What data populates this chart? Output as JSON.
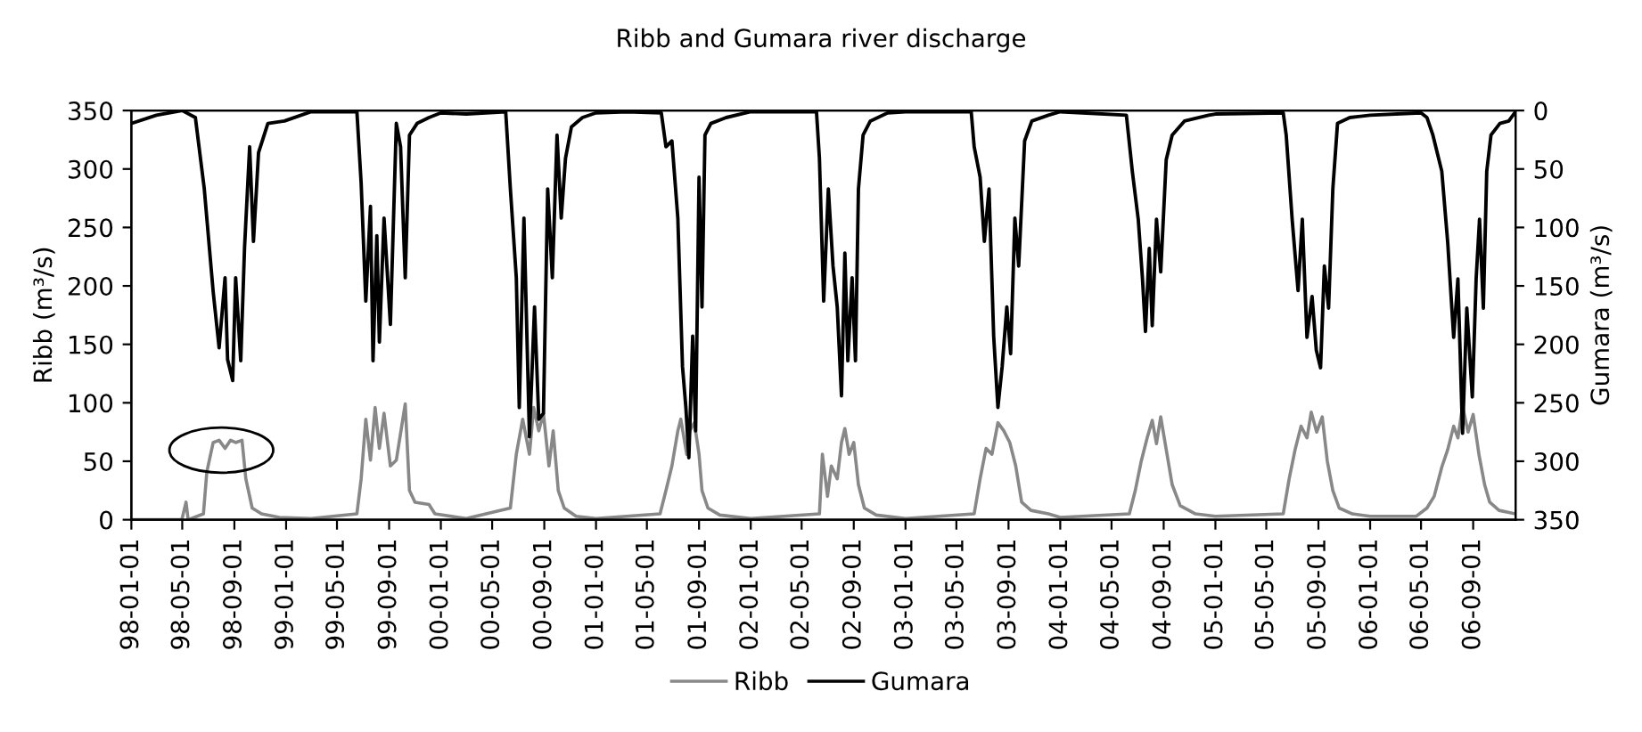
{
  "chart_data": {
    "type": "line",
    "title": "Ribb and Gumara river discharge",
    "ylabel": "Ribb (m³/s)",
    "y2label": "Gumara (m³/s)",
    "xlim": [
      "1998-01-01",
      "2006-12-10"
    ],
    "xticks": [
      {
        "value": "1998-01-01",
        "label": "98-01-01"
      },
      {
        "value": "1998-05-01",
        "label": "98-05-01"
      },
      {
        "value": "1998-09-01",
        "label": "98-09-01"
      },
      {
        "value": "1999-01-01",
        "label": "99-01-01"
      },
      {
        "value": "1999-05-01",
        "label": "99-05-01"
      },
      {
        "value": "1999-09-01",
        "label": "99-09-01"
      },
      {
        "value": "2000-01-01",
        "label": "00-01-01"
      },
      {
        "value": "2000-05-01",
        "label": "00-05-01"
      },
      {
        "value": "2000-09-01",
        "label": "00-09-01"
      },
      {
        "value": "2001-01-01",
        "label": "01-01-01"
      },
      {
        "value": "2001-05-01",
        "label": "01-05-01"
      },
      {
        "value": "2001-09-01",
        "label": "01-09-01"
      },
      {
        "value": "2002-01-01",
        "label": "02-01-01"
      },
      {
        "value": "2002-05-01",
        "label": "02-05-01"
      },
      {
        "value": "2002-09-01",
        "label": "02-09-01"
      },
      {
        "value": "2003-01-01",
        "label": "03-01-01"
      },
      {
        "value": "2003-05-01",
        "label": "03-05-01"
      },
      {
        "value": "2003-09-01",
        "label": "03-09-01"
      },
      {
        "value": "2004-01-01",
        "label": "04-01-01"
      },
      {
        "value": "2004-05-01",
        "label": "04-05-01"
      },
      {
        "value": "2004-09-01",
        "label": "04-09-01"
      },
      {
        "value": "2005-01-01",
        "label": "05-01-01"
      },
      {
        "value": "2005-05-01",
        "label": "05-05-01"
      },
      {
        "value": "2005-09-01",
        "label": "05-09-01"
      },
      {
        "value": "2006-01-01",
        "label": "06-01-01"
      },
      {
        "value": "2006-05-01",
        "label": "06-05-01"
      },
      {
        "value": "2006-09-01",
        "label": "06-09-01"
      }
    ],
    "ylim": [
      0,
      350
    ],
    "yticks": [
      0,
      50,
      100,
      150,
      200,
      250,
      300,
      350
    ],
    "y2lim": [
      350,
      0
    ],
    "y2ticks": [
      0,
      50,
      100,
      150,
      200,
      250,
      300,
      350
    ],
    "grid": false,
    "legend": "bottom",
    "marker": "none",
    "line_style": "solid",
    "series": [
      {
        "name": "Ribb",
        "color": "#888888",
        "axis": "y",
        "x": [
          "1998-01-01",
          "1998-04-30",
          "1998-05-10",
          "1998-05-15",
          "1998-06-20",
          "1998-06-28",
          "1998-07-13",
          "1998-07-27",
          "1998-08-10",
          "1998-08-23",
          "1998-09-04",
          "1998-09-19",
          "1998-09-28",
          "1998-10-13",
          "1998-11-04",
          "1998-12-16",
          "1999-03-01",
          "1999-06-17",
          "1999-06-27",
          "1999-07-08",
          "1999-07-19",
          "1999-07-30",
          "1999-08-09",
          "1999-08-20",
          "1999-09-04",
          "1999-09-18",
          "1999-10-09",
          "1999-10-19",
          "1999-11-01",
          "1999-12-04",
          "1999-12-18",
          "2000-03-01",
          "2000-06-13",
          "2000-06-27",
          "2000-07-12",
          "2000-07-28",
          "2000-08-07",
          "2000-08-19",
          "2000-08-30",
          "2000-09-12",
          "2000-09-22",
          "2000-10-04",
          "2000-10-18",
          "2000-11-15",
          "2001-01-01",
          "2001-06-01",
          "2001-06-15",
          "2001-06-29",
          "2001-07-13",
          "2001-07-20",
          "2001-08-03",
          "2001-08-10",
          "2001-08-21",
          "2001-09-01",
          "2001-09-08",
          "2001-09-22",
          "2001-10-20",
          "2002-01-01",
          "2002-06-12",
          "2002-06-19",
          "2002-07-01",
          "2002-07-10",
          "2002-07-24",
          "2002-08-03",
          "2002-08-11",
          "2002-08-21",
          "2002-09-01",
          "2002-09-12",
          "2002-09-26",
          "2002-10-24",
          "2003-01-01",
          "2003-06-12",
          "2003-06-26",
          "2003-07-10",
          "2003-07-24",
          "2003-08-07",
          "2003-08-21",
          "2003-09-04",
          "2003-09-18",
          "2003-10-02",
          "2003-10-24",
          "2003-12-04",
          "2004-01-01",
          "2004-06-12",
          "2004-06-26",
          "2004-07-10",
          "2004-07-24",
          "2004-08-05",
          "2004-08-15",
          "2004-08-25",
          "2004-09-07",
          "2004-09-21",
          "2004-10-10",
          "2004-11-15",
          "2005-01-01",
          "2005-06-10",
          "2005-06-24",
          "2005-07-08",
          "2005-07-22",
          "2005-08-05",
          "2005-08-15",
          "2005-08-28",
          "2005-09-10",
          "2005-09-22",
          "2005-10-05",
          "2005-10-20",
          "2005-11-20",
          "2006-01-01",
          "2006-04-20",
          "2006-05-15",
          "2006-06-01",
          "2006-06-19",
          "2006-07-03",
          "2006-07-17",
          "2006-07-27",
          "2006-08-07",
          "2006-08-20",
          "2006-09-01",
          "2006-09-15",
          "2006-09-28",
          "2006-10-10",
          "2006-11-01",
          "2006-12-10"
        ],
        "values": [
          0,
          0,
          15,
          0,
          5,
          41,
          66,
          68,
          61,
          68,
          66,
          68,
          35,
          10,
          5,
          2,
          1,
          5,
          35,
          86,
          51,
          96,
          61,
          91,
          46,
          51,
          99,
          25,
          15,
          13,
          5,
          1,
          10,
          56,
          86,
          56,
          96,
          76,
          91,
          46,
          76,
          25,
          10,
          3,
          1,
          5,
          25,
          46,
          76,
          86,
          56,
          76,
          83,
          56,
          25,
          10,
          4,
          1,
          5,
          56,
          20,
          46,
          35,
          66,
          78,
          56,
          66,
          30,
          10,
          4,
          1,
          5,
          35,
          61,
          56,
          83,
          76,
          66,
          46,
          15,
          8,
          5,
          2,
          5,
          25,
          50,
          70,
          85,
          65,
          88,
          60,
          30,
          12,
          5,
          3,
          5,
          35,
          60,
          80,
          70,
          92,
          75,
          88,
          50,
          25,
          10,
          5,
          3,
          3,
          10,
          20,
          45,
          60,
          80,
          70,
          97,
          75,
          90,
          55,
          30,
          15,
          8,
          5
        ]
      },
      {
        "name": "Gumara",
        "color": "#000000",
        "axis": "y2",
        "x": [
          "1998-01-01",
          "1998-03-01",
          "1998-05-01",
          "1998-06-01",
          "1998-06-22",
          "1998-07-13",
          "1998-07-27",
          "1998-08-10",
          "1998-08-16",
          "1998-08-28",
          "1998-09-04",
          "1998-09-16",
          "1998-09-25",
          "1998-10-07",
          "1998-10-16",
          "1998-10-28",
          "1998-11-19",
          "1998-12-28",
          "1999-03-01",
          "1999-06-17",
          "1999-06-27",
          "1999-07-08",
          "1999-07-19",
          "1999-07-25",
          "1999-08-03",
          "1999-08-09",
          "1999-08-20",
          "1999-09-04",
          "1999-09-18",
          "1999-09-28",
          "1999-10-09",
          "1999-10-19",
          "1999-11-06",
          "1999-12-04",
          "2000-01-01",
          "2000-03-01",
          "2000-06-02",
          "2000-06-13",
          "2000-06-27",
          "2000-07-04",
          "2000-07-15",
          "2000-07-28",
          "2000-08-09",
          "2000-08-19",
          "2000-08-30",
          "2000-09-09",
          "2000-09-20",
          "2000-10-01",
          "2000-10-11",
          "2000-10-21",
          "2000-11-04",
          "2000-11-30",
          "2001-01-01",
          "2001-03-15",
          "2001-06-04",
          "2001-06-15",
          "2001-06-29",
          "2001-07-13",
          "2001-07-24",
          "2001-08-01",
          "2001-08-08",
          "2001-08-17",
          "2001-08-24",
          "2001-09-01",
          "2001-09-08",
          "2001-09-15",
          "2001-09-29",
          "2001-11-04",
          "2002-01-01",
          "2002-06-05",
          "2002-06-12",
          "2002-06-22",
          "2002-07-03",
          "2002-07-14",
          "2002-07-24",
          "2002-08-03",
          "2002-08-11",
          "2002-08-18",
          "2002-08-28",
          "2002-09-05",
          "2002-09-12",
          "2002-09-23",
          "2002-10-10",
          "2002-11-20",
          "2003-01-01",
          "2003-06-05",
          "2003-06-12",
          "2003-06-26",
          "2003-07-06",
          "2003-07-17",
          "2003-07-28",
          "2003-08-07",
          "2003-08-17",
          "2003-08-28",
          "2003-09-06",
          "2003-09-16",
          "2003-09-25",
          "2003-10-09",
          "2003-10-26",
          "2003-12-04",
          "2004-01-01",
          "2004-06-05",
          "2004-06-19",
          "2004-07-03",
          "2004-07-13",
          "2004-07-20",
          "2004-07-29",
          "2004-08-05",
          "2004-08-15",
          "2004-08-25",
          "2004-09-07",
          "2004-09-21",
          "2004-10-20",
          "2004-12-16",
          "2005-01-01",
          "2005-06-10",
          "2005-06-17",
          "2005-07-01",
          "2005-07-15",
          "2005-07-25",
          "2005-08-05",
          "2005-08-17",
          "2005-08-27",
          "2005-09-06",
          "2005-09-15",
          "2005-09-25",
          "2005-10-05",
          "2005-10-16",
          "2005-11-14",
          "2006-01-01",
          "2006-05-01",
          "2006-05-15",
          "2006-05-29",
          "2006-06-19",
          "2006-07-03",
          "2006-07-17",
          "2006-07-27",
          "2006-08-07",
          "2006-08-17",
          "2006-08-30",
          "2006-09-08",
          "2006-09-16",
          "2006-09-25",
          "2006-10-03",
          "2006-10-13",
          "2006-11-03",
          "2006-11-24",
          "2006-12-10"
        ],
        "values": [
          11,
          4,
          0,
          6,
          67,
          155,
          203,
          143,
          213,
          231,
          143,
          214,
          117,
          31,
          112,
          36,
          11,
          9,
          1,
          1,
          62,
          163,
          82,
          214,
          107,
          198,
          92,
          183,
          11,
          31,
          143,
          21,
          11,
          6,
          2,
          3,
          1,
          67,
          143,
          254,
          92,
          279,
          168,
          264,
          259,
          67,
          143,
          21,
          92,
          41,
          14,
          6,
          2,
          1,
          2,
          31,
          26,
          92,
          219,
          254,
          297,
          193,
          274,
          57,
          168,
          21,
          11,
          6,
          1,
          1,
          41,
          163,
          67,
          133,
          168,
          244,
          122,
          214,
          143,
          214,
          67,
          21,
          9,
          2,
          1,
          1,
          31,
          57,
          112,
          67,
          193,
          254,
          219,
          168,
          208,
          92,
          133,
          26,
          9,
          4,
          1,
          4,
          52,
          93,
          144,
          189,
          118,
          184,
          93,
          138,
          42,
          21,
          9,
          4,
          3,
          2,
          21,
          93,
          154,
          93,
          194,
          159,
          205,
          220,
          133,
          169,
          67,
          11,
          6,
          4,
          2,
          6,
          21,
          52,
          113,
          194,
          144,
          276,
          169,
          245,
          144,
          93,
          169,
          52,
          21,
          11,
          9,
          1
        ]
      }
    ]
  }
}
